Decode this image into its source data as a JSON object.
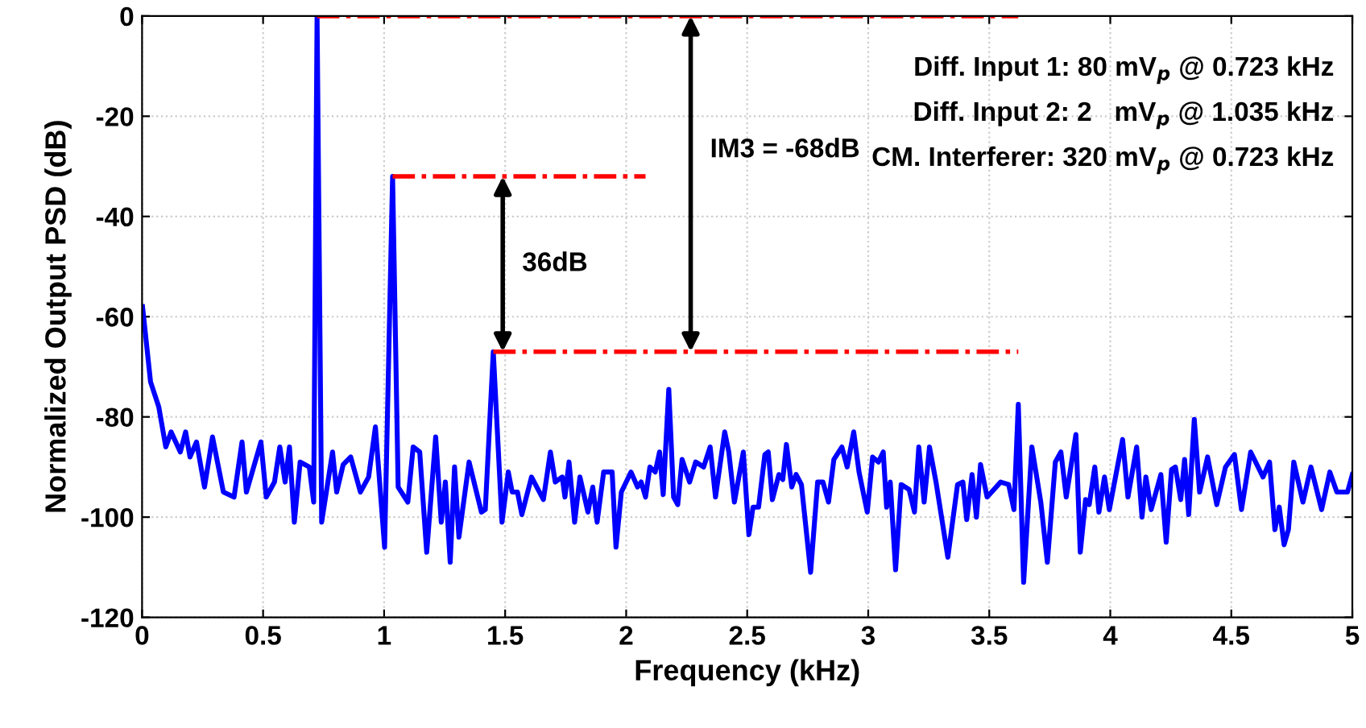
{
  "chart_data": {
    "type": "line",
    "xlabel": "Frequency (kHz)",
    "ylabel": "Normalized Output PSD (dB)",
    "xlim": [
      0,
      5
    ],
    "xticks": [
      0,
      0.5,
      1,
      1.5,
      2,
      2.5,
      3,
      3.5,
      4,
      4.5,
      5
    ],
    "ylim": [
      -120,
      0
    ],
    "yticks": [
      -120,
      -100,
      -80,
      -60,
      -40,
      -20,
      0
    ],
    "grid": true,
    "legend": false,
    "series": [
      {
        "color": "#0000ff",
        "line_style": "solid",
        "x": [
          0.002,
          0.035,
          0.069,
          0.098,
          0.12,
          0.158,
          0.18,
          0.198,
          0.225,
          0.258,
          0.291,
          0.336,
          0.38,
          0.413,
          0.431,
          0.491,
          0.513,
          0.547,
          0.569,
          0.591,
          0.609,
          0.629,
          0.653,
          0.691,
          0.709,
          0.723,
          0.742,
          0.787,
          0.804,
          0.831,
          0.862,
          0.902,
          0.936,
          0.964,
          1.002,
          1.035,
          1.058,
          1.098,
          1.12,
          1.147,
          1.176,
          1.213,
          1.236,
          1.253,
          1.273,
          1.291,
          1.309,
          1.351,
          1.402,
          1.418,
          1.451,
          1.487,
          1.513,
          1.529,
          1.551,
          1.569,
          1.609,
          1.658,
          1.687,
          1.707,
          1.736,
          1.747,
          1.764,
          1.787,
          1.809,
          1.842,
          1.862,
          1.88,
          1.907,
          1.942,
          1.958,
          1.98,
          2.02,
          2.047,
          2.062,
          2.08,
          2.098,
          2.12,
          2.138,
          2.153,
          2.176,
          2.196,
          2.213,
          2.231,
          2.262,
          2.287,
          2.32,
          2.347,
          2.369,
          2.407,
          2.424,
          2.447,
          2.484,
          2.507,
          2.524,
          2.547,
          2.573,
          2.587,
          2.604,
          2.631,
          2.647,
          2.662,
          2.684,
          2.702,
          2.724,
          2.762,
          2.791,
          2.813,
          2.836,
          2.858,
          2.891,
          2.913,
          2.94,
          2.962,
          2.996,
          3.018,
          3.042,
          3.062,
          3.076,
          3.091,
          3.113,
          3.136,
          3.169,
          3.191,
          3.209,
          3.231,
          3.253,
          3.28,
          3.329,
          3.369,
          3.391,
          3.407,
          3.429,
          3.447,
          3.464,
          3.491,
          3.547,
          3.58,
          3.602,
          3.62,
          3.642,
          3.676,
          3.713,
          3.74,
          3.773,
          3.796,
          3.818,
          3.858,
          3.876,
          3.898,
          3.913,
          3.936,
          3.953,
          3.976,
          3.996,
          4.051,
          4.073,
          4.109,
          4.131,
          4.147,
          4.169,
          4.209,
          4.231,
          4.253,
          4.269,
          4.291,
          4.307,
          4.324,
          4.347,
          4.369,
          4.402,
          4.44,
          4.476,
          4.513,
          4.542,
          4.58,
          4.631,
          4.658,
          4.68,
          4.698,
          4.718,
          4.736,
          4.758,
          4.796,
          4.829,
          4.873,
          4.907,
          4.936,
          4.98,
          5.0
        ],
        "values": [
          -58,
          -73,
          -78,
          -86,
          -83,
          -87,
          -83,
          -88,
          -85,
          -94,
          -84,
          -95,
          -96,
          -85,
          -95,
          -85,
          -96,
          -93,
          -86,
          -93,
          -86,
          -101,
          -89,
          -90,
          -97,
          0,
          -101,
          -87,
          -95,
          -89.5,
          -88,
          -95,
          -92,
          -82,
          -106,
          -32,
          -94,
          -97,
          -86,
          -87,
          -107,
          -84,
          -101,
          -93,
          -109,
          -90,
          -104,
          -89,
          -99,
          -98.5,
          -67,
          -101,
          -91,
          -95,
          -95,
          -99.5,
          -92,
          -96.5,
          -87,
          -93,
          -92,
          -96,
          -89,
          -101,
          -92,
          -99,
          -94,
          -101,
          -91,
          -91,
          -106,
          -95,
          -91,
          -94,
          -93,
          -96,
          -90,
          -91,
          -87,
          -95.5,
          -74.5,
          -96,
          -97.5,
          -88.5,
          -93,
          -89,
          -90,
          -86,
          -96,
          -83,
          -87,
          -97,
          -87,
          -103.5,
          -98,
          -98,
          -87.5,
          -87,
          -96.5,
          -91.5,
          -92.5,
          -85.5,
          -94,
          -91.5,
          -93.5,
          -111,
          -93,
          -93,
          -97,
          -88.5,
          -86,
          -90,
          -83,
          -91,
          -99,
          -88,
          -89,
          -87,
          -98,
          -93,
          -110.5,
          -93.5,
          -94.5,
          -99,
          -86,
          -97,
          -86,
          -93,
          -108,
          -93.5,
          -93,
          -100.5,
          -91.5,
          -100,
          -89.5,
          -96,
          -93,
          -93.5,
          -98.5,
          -77.5,
          -113,
          -86,
          -97,
          -109,
          -89,
          -87,
          -96,
          -83.5,
          -107,
          -96.5,
          -97.5,
          -90,
          -99,
          -92,
          -98.5,
          -84.5,
          -96,
          -86,
          -100,
          -92,
          -98.5,
          -91.5,
          -105,
          -90.5,
          -90,
          -96.5,
          -88.5,
          -99.5,
          -80.5,
          -95,
          -88,
          -97.5,
          -90,
          -87.5,
          -98.5,
          -87,
          -92,
          -89,
          -102.5,
          -98,
          -105.5,
          -102.5,
          -89,
          -97,
          -90,
          -98.5,
          -91,
          -95,
          -95,
          -91.5
        ]
      },
      {
        "color": "#ff0000",
        "line_style": "dashdot",
        "x": [
          0.723,
          3.62
        ],
        "values": [
          0,
          0
        ]
      },
      {
        "color": "#ff0000",
        "line_style": "dashdot",
        "x": [
          1.035,
          2.08
        ],
        "values": [
          -32,
          -32
        ]
      },
      {
        "color": "#ff0000",
        "line_style": "dashdot",
        "x": [
          1.451,
          3.62
        ],
        "values": [
          -67,
          -67
        ]
      }
    ],
    "annotations": [
      "36dB",
      "IM3 = -68dB",
      "Diff. Input 1: 80 mV$_{p}$ @ 0.723 kHz",
      "Diff. Input 2: 2   mV$_{p}$ @ 1.035 kHz",
      "CM. Interferer: 320 mV$_{p}$ @ 0.723 kHz"
    ]
  }
}
